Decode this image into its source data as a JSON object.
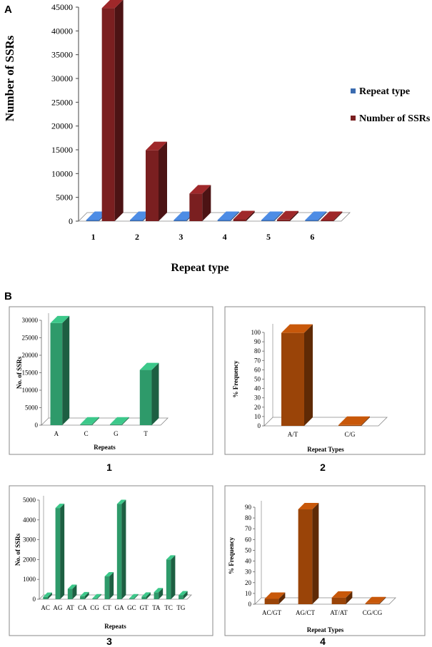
{
  "figure": {
    "panel_a_letter": "A",
    "panel_b_letter": "B",
    "sub_labels": [
      "1",
      "2",
      "3",
      "4"
    ]
  },
  "colors": {
    "blue": "#3b6cb0",
    "maroon": "#7a1f20",
    "green": "#2e9a6a",
    "brown": "#9a4408"
  },
  "chart_data": [
    {
      "id": "A",
      "type": "bar",
      "title": "",
      "xlabel": "Repeat type",
      "ylabel": "Number of SSRs",
      "categories": [
        "1",
        "2",
        "3",
        "4",
        "5",
        "6"
      ],
      "series": [
        {
          "name": "Repeat type",
          "color": "#3b6cb0",
          "values": [
            1,
            2,
            3,
            4,
            5,
            6
          ]
        },
        {
          "name": "Number of SSRs",
          "color": "#7a1f20",
          "values": [
            44800,
            14900,
            5800,
            380,
            330,
            180
          ]
        }
      ],
      "yticks": [
        0,
        5000,
        10000,
        15000,
        20000,
        25000,
        30000,
        35000,
        40000,
        45000
      ],
      "ylim": [
        0,
        45000
      ],
      "legend": "right"
    },
    {
      "id": "B1",
      "type": "bar",
      "xlabel": "Repeats",
      "ylabel": "No. of SSRs",
      "categories": [
        "A",
        "C",
        "G",
        "T"
      ],
      "values": [
        29200,
        150,
        250,
        15800
      ],
      "yticks": [
        0,
        5000,
        10000,
        15000,
        20000,
        25000,
        30000
      ],
      "ylim": [
        0,
        30000
      ],
      "color": "#2e9a6a"
    },
    {
      "id": "B2",
      "type": "bar",
      "xlabel": "Repeat Types",
      "ylabel": "% Frequency",
      "categories": [
        "A/T",
        "C/G"
      ],
      "values": [
        99.5,
        0.5
      ],
      "yticks": [
        0,
        10,
        20,
        30,
        40,
        50,
        60,
        70,
        80,
        90,
        100
      ],
      "ylim": [
        0,
        100
      ],
      "color": "#9a4408"
    },
    {
      "id": "B3",
      "type": "bar",
      "xlabel": "Repeats",
      "ylabel": "No. of SSRs",
      "categories": [
        "AC",
        "AG",
        "AT",
        "CA",
        "CG",
        "CT",
        "GA",
        "GC",
        "GT",
        "TA",
        "TC",
        "TG"
      ],
      "values": [
        120,
        4600,
        520,
        150,
        10,
        1150,
        4800,
        10,
        130,
        350,
        2000,
        200
      ],
      "yticks": [
        0,
        1000,
        2000,
        3000,
        4000,
        5000
      ],
      "ylim": [
        0,
        5000
      ],
      "color": "#2e9a6a"
    },
    {
      "id": "B4",
      "type": "bar",
      "xlabel": "Repeat Types",
      "ylabel": "% Frequency",
      "categories": [
        "AC/GT",
        "AG/CT",
        "AT/AT",
        "CG/CG"
      ],
      "values": [
        5,
        88,
        6,
        0.5
      ],
      "yticks": [
        0,
        10,
        20,
        30,
        40,
        50,
        60,
        70,
        80,
        90
      ],
      "ylim": [
        0,
        90
      ],
      "color": "#9a4408"
    }
  ]
}
